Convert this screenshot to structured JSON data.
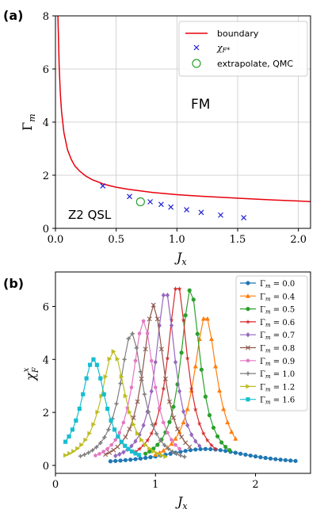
{
  "chart_data": [
    {
      "panel_label": "(a)",
      "type": "line",
      "xlabel": "J",
      "xlabel_sub": "x",
      "ylabel": "Γ",
      "ylabel_sub": "m",
      "xlim": [
        0,
        2.1
      ],
      "ylim": [
        0,
        8
      ],
      "xticks": [
        0.0,
        0.5,
        1.0,
        1.5,
        2.0
      ],
      "xtick_labels": [
        "0.0",
        "0.5",
        "1.0",
        "1.5",
        "2.0"
      ],
      "yticks": [
        0,
        2,
        4,
        6,
        8
      ],
      "ytick_labels": [
        "0",
        "2",
        "4",
        "6",
        "8"
      ],
      "grid": true,
      "legend_position": "top-right",
      "annotations": [
        "FM",
        "Z2 QSL"
      ],
      "series": [
        {
          "name": "boundary",
          "style": "line",
          "color": "#e8000b",
          "x": [
            0.02,
            0.03,
            0.04,
            0.05,
            0.07,
            0.1,
            0.13,
            0.16,
            0.2,
            0.25,
            0.3,
            0.4,
            0.5,
            0.6,
            0.7,
            0.8,
            0.9,
            1.0,
            1.2,
            1.4,
            1.6,
            1.8,
            2.0,
            2.1
          ],
          "y": [
            8.0,
            6.2,
            5.1,
            4.4,
            3.6,
            2.95,
            2.6,
            2.35,
            2.15,
            1.97,
            1.84,
            1.66,
            1.55,
            1.47,
            1.41,
            1.35,
            1.31,
            1.27,
            1.21,
            1.16,
            1.11,
            1.07,
            1.03,
            1.01
          ]
        },
        {
          "name": "χF*",
          "legend_text": "χ",
          "legend_sub": "F*",
          "style": "x-marker",
          "color": "#1f1fd6",
          "x": [
            0.39,
            0.61,
            0.78,
            0.87,
            0.95,
            1.08,
            1.2,
            1.36,
            1.55
          ],
          "y": [
            1.6,
            1.2,
            1.0,
            0.9,
            0.8,
            0.7,
            0.6,
            0.5,
            0.4
          ]
        },
        {
          "name": "extrapolate, QMC",
          "style": "open-circle",
          "color": "#2ca02c",
          "x": [
            0.7
          ],
          "y": [
            1.0
          ]
        }
      ]
    },
    {
      "panel_label": "(b)",
      "type": "line",
      "xlabel": "J",
      "xlabel_sub": "x",
      "ylabel": "χ",
      "ylabel_sub": "F",
      "ylabel_sup": "x",
      "xlim": [
        0,
        2.55
      ],
      "ylim": [
        -0.3,
        7.3
      ],
      "xticks": [
        0,
        1,
        2
      ],
      "xtick_labels": [
        "0",
        "1",
        "2"
      ],
      "yticks": [
        0,
        2,
        4,
        6
      ],
      "ytick_labels": [
        "0",
        "2",
        "4",
        "6"
      ],
      "grid": false,
      "legend_position": "top-right",
      "legend_prefix": "Γ",
      "legend_sub": "m",
      "series": [
        {
          "name": "Γm = 0.0",
          "legend_value": " = 0.0",
          "color": "#1f77b4",
          "marker": "circle",
          "peak_x": 1.5,
          "peak_y": 0.62,
          "width": 0.55,
          "x_range": [
            0.55,
            2.4
          ],
          "step": 0.05
        },
        {
          "name": "Γm = 0.4",
          "legend_value": " = 0.4",
          "color": "#ff7f0e",
          "marker": "triangle",
          "peak_x": 1.5,
          "peak_y": 5.65,
          "width": 0.14,
          "x_range": [
            1.0,
            1.8
          ],
          "step": 0.04
        },
        {
          "name": "Γm = 0.5",
          "legend_value": " = 0.5",
          "color": "#2ca02c",
          "marker": "circle",
          "peak_x": 1.35,
          "peak_y": 6.65,
          "width": 0.12,
          "x_range": [
            0.9,
            1.75
          ],
          "step": 0.04
        },
        {
          "name": "Γm = 0.6",
          "legend_value": " = 0.6",
          "color": "#d62728",
          "marker": "star",
          "peak_x": 1.22,
          "peak_y": 6.85,
          "width": 0.12,
          "x_range": [
            0.8,
            1.6
          ],
          "step": 0.04
        },
        {
          "name": "Γm = 0.7",
          "legend_value": " = 0.7",
          "color": "#9467bd",
          "marker": "diamond",
          "peak_x": 1.1,
          "peak_y": 6.6,
          "width": 0.12,
          "x_range": [
            0.6,
            1.45
          ],
          "step": 0.04
        },
        {
          "name": "Γm = 0.8",
          "legend_value": " = 0.8",
          "color": "#8c564b",
          "marker": "x",
          "peak_x": 0.98,
          "peak_y": 6.05,
          "width": 0.13,
          "x_range": [
            0.5,
            1.35
          ],
          "step": 0.04
        },
        {
          "name": "Γm = 0.9",
          "legend_value": " = 0.9",
          "color": "#e377c2",
          "marker": "pentagon",
          "peak_x": 0.88,
          "peak_y": 5.45,
          "width": 0.13,
          "x_range": [
            0.4,
            1.25
          ],
          "step": 0.04
        },
        {
          "name": "Γm = 1.0",
          "legend_value": " = 1.0",
          "color": "#7f7f7f",
          "marker": "plus",
          "peak_x": 0.76,
          "peak_y": 5.0,
          "width": 0.14,
          "x_range": [
            0.25,
            1.3
          ],
          "step": 0.04
        },
        {
          "name": "Γm = 1.2",
          "legend_value": " = 1.2",
          "color": "#bcbd22",
          "marker": "tri-right",
          "peak_x": 0.58,
          "peak_y": 4.3,
          "width": 0.15,
          "x_range": [
            0.1,
            1.1
          ],
          "step": 0.04
        },
        {
          "name": "Γm = 1.6",
          "legend_value": " = 1.6",
          "color": "#17becf",
          "marker": "square",
          "peak_x": 0.38,
          "peak_y": 4.0,
          "width": 0.15,
          "x_range": [
            0.1,
            0.85
          ],
          "step": 0.035
        }
      ]
    }
  ]
}
